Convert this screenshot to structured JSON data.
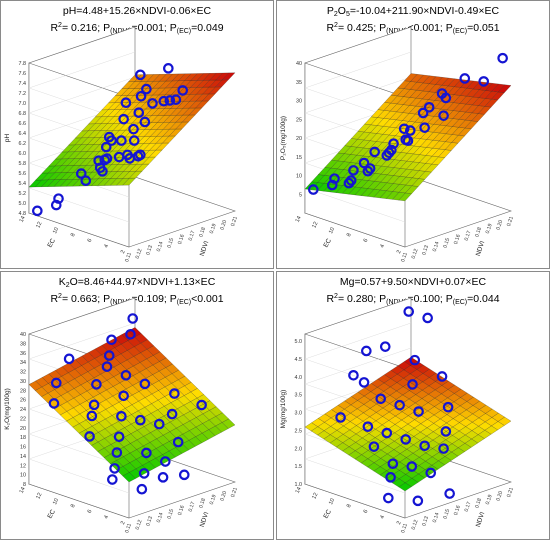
{
  "colors": {
    "border": "#8a8a8a",
    "surface_high": "#c8000a",
    "surface_mid": "#ffdc00",
    "surface_low": "#00c800",
    "mesh": "#1a1a1a",
    "points": "#1414d2",
    "axes": "#666666"
  },
  "chart_data": [
    {
      "type": "3d-surface-scatter",
      "equation": "pH=4.48+15.26×NDVI-0.06×EC",
      "stats": {
        "r2": "R²= 0.216;",
        "p_ndvi": "P(NDVI)=0.001;",
        "p_ec": "P(EC)=0.049"
      },
      "stats_parts": [
        "R",
        "2",
        "= 0.216; P",
        "(NDVI)",
        "=0.001; P",
        "(EC)",
        "=0.049"
      ],
      "zlabel": "pH",
      "xlabel": "NDVI",
      "ylabel": "EC",
      "x_ticks": [
        "0.11",
        "0.12",
        "0.13",
        "0.14",
        "0.15",
        "0.16",
        "0.17",
        "0.18",
        "0.19",
        "0.20",
        "0.21"
      ],
      "y_ticks": [
        "2",
        "4",
        "6",
        "8",
        "10",
        "12",
        "14"
      ],
      "z_ticks": [
        "4.8",
        "5.0",
        "5.2",
        "5.4",
        "5.6",
        "5.8",
        "6.0",
        "6.2",
        "6.4",
        "6.6",
        "6.8",
        "7.0",
        "7.2",
        "7.4",
        "7.6",
        "7.8"
      ],
      "x_range": [
        0.11,
        0.21
      ],
      "y_range": [
        2,
        14
      ],
      "z_range": [
        4.8,
        7.8
      ],
      "model": {
        "a": 4.48,
        "b": 15.26,
        "c": -0.06
      },
      "points": [
        [
          0.14,
          3,
          7.4
        ],
        [
          0.15,
          5,
          7.5
        ],
        [
          0.16,
          7,
          7.6
        ],
        [
          0.17,
          4,
          7.2
        ],
        [
          0.18,
          6,
          7.0
        ],
        [
          0.13,
          4,
          6.9
        ],
        [
          0.12,
          6,
          6.5
        ],
        [
          0.15,
          8,
          6.3
        ],
        [
          0.16,
          9,
          6.6
        ],
        [
          0.17,
          10,
          6.8
        ],
        [
          0.14,
          6,
          6.2
        ],
        [
          0.15,
          6,
          6.1
        ],
        [
          0.16,
          7,
          6.0
        ],
        [
          0.15,
          7,
          6.0
        ],
        [
          0.14,
          7,
          6.1
        ],
        [
          0.13,
          8,
          5.9
        ],
        [
          0.12,
          9,
          5.8
        ],
        [
          0.18,
          9,
          6.4
        ],
        [
          0.19,
          8,
          6.8
        ],
        [
          0.2,
          7,
          7.0
        ],
        [
          0.19,
          11,
          6.4
        ],
        [
          0.17,
          12,
          6.0
        ],
        [
          0.16,
          12,
          5.6
        ],
        [
          0.14,
          11,
          5.4
        ],
        [
          0.12,
          12,
          5.0
        ],
        [
          0.11,
          13,
          4.9
        ],
        [
          0.13,
          13,
          5.0
        ],
        [
          0.18,
          13,
          5.8
        ],
        [
          0.2,
          12,
          6.6
        ],
        [
          0.21,
          10,
          7.2
        ],
        [
          0.15,
          10,
          5.8
        ],
        [
          0.16,
          11,
          5.7
        ],
        [
          0.17,
          9,
          6.1
        ],
        [
          0.14,
          9,
          5.7
        ]
      ]
    },
    {
      "type": "3d-surface-scatter",
      "equation": "P₂O₅=-10.04+211.90×NDVI-0.49×EC",
      "stats": {
        "r2": "R²= 0.425;",
        "p_ndvi": "P(NDVI)<0.001;",
        "p_ec": "P(EC)=0.051"
      },
      "stats_parts": [
        "R",
        "2",
        "= 0.425; P",
        "(NDVI)",
        "<0.001; P",
        "(EC)",
        "=0.051"
      ],
      "equation_parts": [
        "P",
        "2",
        "O",
        "5",
        "=-10.04+211.90×NDVI-0.49×EC"
      ],
      "zlabel": "P₂O₅(mg/100g)",
      "xlabel": "NDVI",
      "ylabel": "EC",
      "x_ticks": [
        "0.11",
        "0.12",
        "0.13",
        "0.14",
        "0.15",
        "0.16",
        "0.17",
        "0.18",
        "0.19",
        "0.20",
        "0.21"
      ],
      "y_ticks": [
        "2",
        "4",
        "6",
        "8",
        "10",
        "12",
        "14"
      ],
      "z_ticks": [
        "5",
        "10",
        "15",
        "20",
        "25",
        "30",
        "35",
        "40"
      ],
      "x_range": [
        0.11,
        0.21
      ],
      "y_range": [
        2,
        14
      ],
      "z_range": [
        0,
        40
      ],
      "model": {
        "a": -10.04,
        "b": 211.9,
        "c": -0.49
      },
      "points": [
        [
          0.21,
          3,
          40
        ],
        [
          0.19,
          5,
          35
        ],
        [
          0.2,
          4,
          34
        ],
        [
          0.18,
          6,
          30
        ],
        [
          0.17,
          5,
          27
        ],
        [
          0.16,
          6,
          24
        ],
        [
          0.18,
          8,
          26
        ],
        [
          0.15,
          7,
          21
        ],
        [
          0.16,
          8,
          19
        ],
        [
          0.17,
          9,
          20
        ],
        [
          0.14,
          8,
          17
        ],
        [
          0.15,
          9,
          16
        ],
        [
          0.16,
          10,
          15
        ],
        [
          0.13,
          9,
          13
        ],
        [
          0.14,
          10,
          12
        ],
        [
          0.12,
          10,
          10
        ],
        [
          0.13,
          11,
          9
        ],
        [
          0.12,
          12,
          8
        ],
        [
          0.11,
          13,
          7
        ],
        [
          0.14,
          12,
          10
        ],
        [
          0.15,
          12,
          11
        ],
        [
          0.17,
          11,
          15
        ],
        [
          0.18,
          11,
          18
        ],
        [
          0.19,
          10,
          22
        ],
        [
          0.2,
          9,
          27
        ],
        [
          0.13,
          13,
          8
        ],
        [
          0.16,
          12,
          13
        ]
      ]
    },
    {
      "type": "3d-surface-scatter",
      "equation": "K₂O=8.46+44.97×NDVI+1.13×EC",
      "stats": {
        "r2": "R²= 0.663;",
        "p_ndvi": "P(NDVI)=0.109;",
        "p_ec": "P(EC)<0.001"
      },
      "stats_parts": [
        "R",
        "2",
        "= 0.663; P",
        "(NDVI)",
        "=0.109; P",
        "(EC)",
        "<0.001"
      ],
      "equation_parts": [
        "K",
        "2",
        "O=8.46+44.97×NDVI+1.13×EC"
      ],
      "zlabel": "K₂O(mg/100g)",
      "xlabel": "NDVI",
      "ylabel": "EC",
      "x_ticks": [
        "0.11",
        "0.12",
        "0.13",
        "0.14",
        "0.15",
        "0.16",
        "0.17",
        "0.18",
        "0.19",
        "0.20",
        "0.21"
      ],
      "y_ticks": [
        "2",
        "4",
        "6",
        "8",
        "10",
        "12",
        "14"
      ],
      "z_ticks": [
        "8",
        "10",
        "12",
        "14",
        "16",
        "18",
        "20",
        "22",
        "24",
        "26",
        "28",
        "30",
        "32",
        "34",
        "36",
        "38",
        "40"
      ],
      "x_range": [
        0.11,
        0.21
      ],
      "y_range": [
        2,
        14
      ],
      "z_range": [
        8,
        40
      ],
      "model": {
        "a": 8.46,
        "b": 44.97,
        "c": 1.13
      },
      "points": [
        [
          0.2,
          13,
          37
        ],
        [
          0.19,
          12,
          35
        ],
        [
          0.18,
          13,
          34
        ],
        [
          0.17,
          12,
          32
        ],
        [
          0.16,
          11,
          31
        ],
        [
          0.17,
          10,
          29
        ],
        [
          0.15,
          11,
          28
        ],
        [
          0.18,
          9,
          27
        ],
        [
          0.16,
          9,
          26
        ],
        [
          0.14,
          10,
          25
        ],
        [
          0.13,
          9,
          24
        ],
        [
          0.15,
          8,
          23
        ],
        [
          0.16,
          7,
          22
        ],
        [
          0.12,
          8,
          21
        ],
        [
          0.14,
          7,
          20
        ],
        [
          0.17,
          6,
          21
        ],
        [
          0.13,
          6,
          18
        ],
        [
          0.15,
          5,
          17
        ],
        [
          0.12,
          5,
          16
        ],
        [
          0.16,
          4,
          15
        ],
        [
          0.14,
          4,
          14
        ],
        [
          0.11,
          4,
          15
        ],
        [
          0.18,
          5,
          17
        ],
        [
          0.19,
          7,
          21
        ],
        [
          0.2,
          8,
          24
        ],
        [
          0.13,
          3,
          12
        ],
        [
          0.15,
          3,
          13
        ],
        [
          0.17,
          3,
          12
        ],
        [
          0.21,
          6,
          22
        ],
        [
          0.12,
          12,
          30
        ],
        [
          0.14,
          13,
          33
        ],
        [
          0.11,
          11,
          27
        ]
      ]
    },
    {
      "type": "3d-surface-scatter",
      "equation": "Mg=0.57+9.50×NDVI+0.07×EC",
      "stats": {
        "r2": "R²= 0.280;",
        "p_ndvi": "P(NDVI)=0.100;",
        "p_ec": "P(EC)=0.044"
      },
      "stats_parts": [
        "R",
        "2",
        "= 0.280; P",
        "(NDVI)",
        "=0.100; P",
        "(EC)",
        "=0.044"
      ],
      "zlabel": "Mg(mg/100g)",
      "xlabel": "NDVI",
      "ylabel": "EC",
      "x_ticks": [
        "0.11",
        "0.12",
        "0.13",
        "0.14",
        "0.15",
        "0.16",
        "0.17",
        "0.18",
        "0.19",
        "0.20",
        "0.21"
      ],
      "y_ticks": [
        "2",
        "4",
        "6",
        "8",
        "10",
        "12",
        "14"
      ],
      "z_ticks": [
        "1.0",
        "1.5",
        "2.0",
        "2.5",
        "3.0",
        "3.5",
        "4.0",
        "4.5",
        "5.0"
      ],
      "x_range": [
        0.11,
        0.21
      ],
      "y_range": [
        2,
        14
      ],
      "z_range": [
        1.0,
        5.2
      ],
      "model": {
        "a": 0.57,
        "b": 9.5,
        "c": 0.07
      },
      "points": [
        [
          0.2,
          13,
          5.0
        ],
        [
          0.21,
          12,
          4.8
        ],
        [
          0.16,
          13,
          4.3
        ],
        [
          0.17,
          12,
          4.4
        ],
        [
          0.14,
          12,
          3.9
        ],
        [
          0.18,
          10,
          3.4
        ],
        [
          0.15,
          10,
          3.3
        ],
        [
          0.16,
          9,
          3.1
        ],
        [
          0.17,
          8,
          2.9
        ],
        [
          0.13,
          9,
          2.8
        ],
        [
          0.14,
          8,
          2.6
        ],
        [
          0.15,
          7,
          2.4
        ],
        [
          0.12,
          7,
          2.5
        ],
        [
          0.16,
          6,
          2.2
        ],
        [
          0.13,
          6,
          2.0
        ],
        [
          0.14,
          5,
          1.9
        ],
        [
          0.12,
          5,
          1.8
        ],
        [
          0.15,
          4,
          1.7
        ],
        [
          0.17,
          5,
          2.1
        ],
        [
          0.18,
          6,
          2.4
        ],
        [
          0.19,
          7,
          2.9
        ],
        [
          0.11,
          4,
          1.4
        ],
        [
          0.13,
          3,
          1.2
        ],
        [
          0.16,
          3,
          1.1
        ],
        [
          0.2,
          9,
          3.5
        ],
        [
          0.19,
          11,
          3.9
        ],
        [
          0.12,
          11,
          3.0
        ],
        [
          0.15,
          12,
          3.6
        ]
      ]
    }
  ]
}
